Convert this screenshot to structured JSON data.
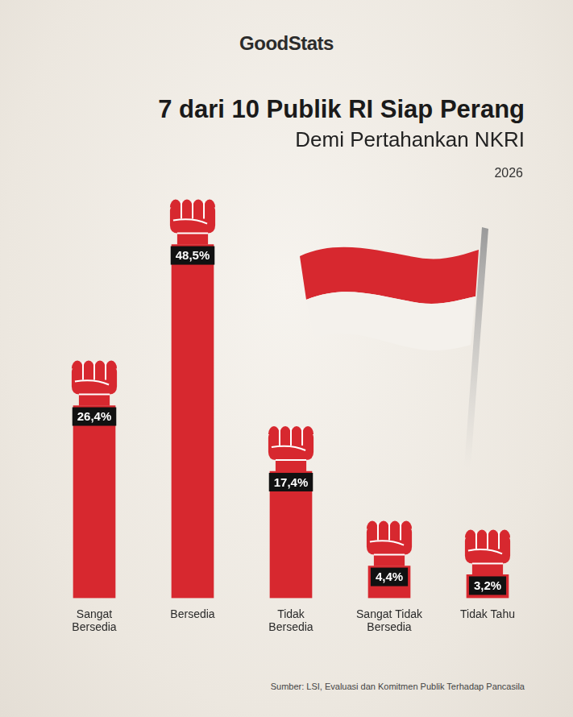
{
  "logo": "GoodStats",
  "year": "2026",
  "source": "Sumber: LSI, Evaluasi dan Komitmen Publik Terhadap Pancasila",
  "chart_data": {
    "type": "bar",
    "title": "7 dari 10 Publik RI Siap Perang",
    "subtitle": "Demi Pertahankan NKRI",
    "categories": [
      "Sangat Bersedia",
      "Bersedia",
      "Tidak Bersedia",
      "Sangat Tidak Bersedia",
      "Tidak Tahu"
    ],
    "values": [
      26.4,
      48.5,
      17.4,
      4.4,
      3.2
    ],
    "value_labels": [
      "26,4%",
      "48,5%",
      "17,4%",
      "4,4%",
      "3,2%"
    ],
    "color": "#d7282f",
    "data_labels": true,
    "tick_labels": "x",
    "grid": false
  }
}
